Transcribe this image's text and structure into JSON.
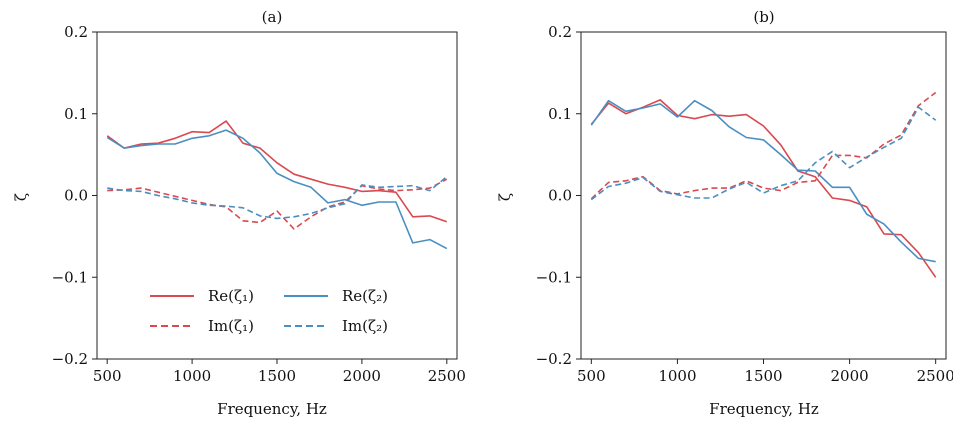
{
  "colors": {
    "zeta1": "#d9494f",
    "zeta2": "#4a8fc2"
  },
  "legend": {
    "re1": "Re(ζ₁)",
    "re2": "Re(ζ₂)",
    "im1": "Im(ζ₁)",
    "im2": "Im(ζ₂)"
  },
  "chart_data": [
    {
      "type": "line",
      "title": "(a)",
      "xlabel": "Frequency, Hz",
      "ylabel": "ζ",
      "xlim": [
        440,
        2560
      ],
      "ylim": [
        -0.2,
        0.2
      ],
      "xticks": [
        500,
        1000,
        1500,
        2000,
        2500
      ],
      "xtick_labels": [
        "500",
        "1000",
        "1500",
        "2000",
        "2500"
      ],
      "yticks": [
        -0.2,
        -0.1,
        0.0,
        0.1,
        0.2
      ],
      "ytick_labels": [
        "−0.2",
        "−0.1",
        "0.0",
        "0.1",
        "0.2"
      ],
      "legend_position": "bottom-center",
      "x": [
        500,
        600,
        700,
        800,
        900,
        1000,
        1100,
        1200,
        1300,
        1400,
        1500,
        1600,
        1700,
        1800,
        1900,
        2000,
        2100,
        2200,
        2300,
        2400,
        2500
      ],
      "series": [
        {
          "name": "Re(ζ₁)",
          "color_key": "zeta1",
          "dash": "solid",
          "values": [
            0.073,
            0.058,
            0.063,
            0.064,
            0.07,
            0.078,
            0.077,
            0.091,
            0.064,
            0.058,
            0.04,
            0.026,
            0.02,
            0.014,
            0.01,
            0.005,
            0.006,
            0.004,
            -0.026,
            -0.025,
            -0.032
          ]
        },
        {
          "name": "Re(ζ₂)",
          "color_key": "zeta2",
          "dash": "solid",
          "values": [
            0.071,
            0.058,
            0.061,
            0.063,
            0.063,
            0.07,
            0.073,
            0.08,
            0.07,
            0.052,
            0.027,
            0.017,
            0.01,
            -0.009,
            -0.005,
            -0.012,
            -0.008,
            -0.008,
            -0.058,
            -0.054,
            -0.065
          ]
        },
        {
          "name": "Im(ζ₁)",
          "color_key": "zeta1",
          "dash": "dashed",
          "values": [
            0.006,
            0.007,
            0.009,
            0.004,
            -0.001,
            -0.006,
            -0.011,
            -0.014,
            -0.031,
            -0.033,
            -0.019,
            -0.041,
            -0.026,
            -0.014,
            -0.008,
            0.012,
            0.008,
            0.006,
            0.007,
            0.009,
            0.02
          ]
        },
        {
          "name": "Im(ζ₂)",
          "color_key": "zeta2",
          "dash": "dashed",
          "values": [
            0.009,
            0.006,
            0.005,
            0.0,
            -0.004,
            -0.009,
            -0.012,
            -0.013,
            -0.015,
            -0.025,
            -0.028,
            -0.026,
            -0.022,
            -0.015,
            -0.01,
            0.013,
            0.01,
            0.011,
            0.012,
            0.006,
            0.023
          ]
        }
      ]
    },
    {
      "type": "line",
      "title": "(b)",
      "xlabel": "Frequency, Hz",
      "ylabel": "ζ",
      "xlim": [
        440,
        2560
      ],
      "ylim": [
        -0.2,
        0.2
      ],
      "xticks": [
        500,
        1000,
        1500,
        2000,
        2500
      ],
      "xtick_labels": [
        "500",
        "1000",
        "1500",
        "2000",
        "2500"
      ],
      "yticks": [
        -0.2,
        -0.1,
        0.0,
        0.1,
        0.2
      ],
      "ytick_labels": [
        "−0.2",
        "−0.1",
        "0.0",
        "0.1",
        "0.2"
      ],
      "x": [
        500,
        600,
        700,
        800,
        900,
        1000,
        1100,
        1200,
        1300,
        1400,
        1500,
        1600,
        1700,
        1800,
        1900,
        2000,
        2100,
        2200,
        2300,
        2400,
        2500
      ],
      "series": [
        {
          "name": "Re(ζ₁)",
          "color_key": "zeta1",
          "dash": "solid",
          "values": [
            0.087,
            0.113,
            0.1,
            0.108,
            0.117,
            0.098,
            0.094,
            0.099,
            0.097,
            0.099,
            0.085,
            0.062,
            0.03,
            0.023,
            -0.003,
            -0.006,
            -0.014,
            -0.047,
            -0.048,
            -0.07,
            -0.1
          ]
        },
        {
          "name": "Re(ζ₂)",
          "color_key": "zeta2",
          "dash": "solid",
          "values": [
            0.086,
            0.116,
            0.103,
            0.107,
            0.112,
            0.096,
            0.116,
            0.104,
            0.084,
            0.071,
            0.068,
            0.05,
            0.031,
            0.03,
            0.01,
            0.01,
            -0.023,
            -0.035,
            -0.057,
            -0.077,
            -0.081
          ]
        },
        {
          "name": "Im(ζ₁)",
          "color_key": "zeta1",
          "dash": "dashed",
          "values": [
            -0.004,
            0.016,
            0.018,
            0.023,
            0.006,
            0.002,
            0.006,
            0.009,
            0.009,
            0.018,
            0.009,
            0.006,
            0.016,
            0.018,
            0.049,
            0.049,
            0.046,
            0.063,
            0.074,
            0.11,
            0.126
          ]
        },
        {
          "name": "Im(ζ₂)",
          "color_key": "zeta2",
          "dash": "dashed",
          "values": [
            -0.005,
            0.011,
            0.015,
            0.022,
            0.005,
            0.001,
            -0.003,
            -0.003,
            0.008,
            0.016,
            0.003,
            0.012,
            0.018,
            0.04,
            0.054,
            0.034,
            0.047,
            0.059,
            0.07,
            0.108,
            0.092
          ]
        }
      ]
    }
  ]
}
